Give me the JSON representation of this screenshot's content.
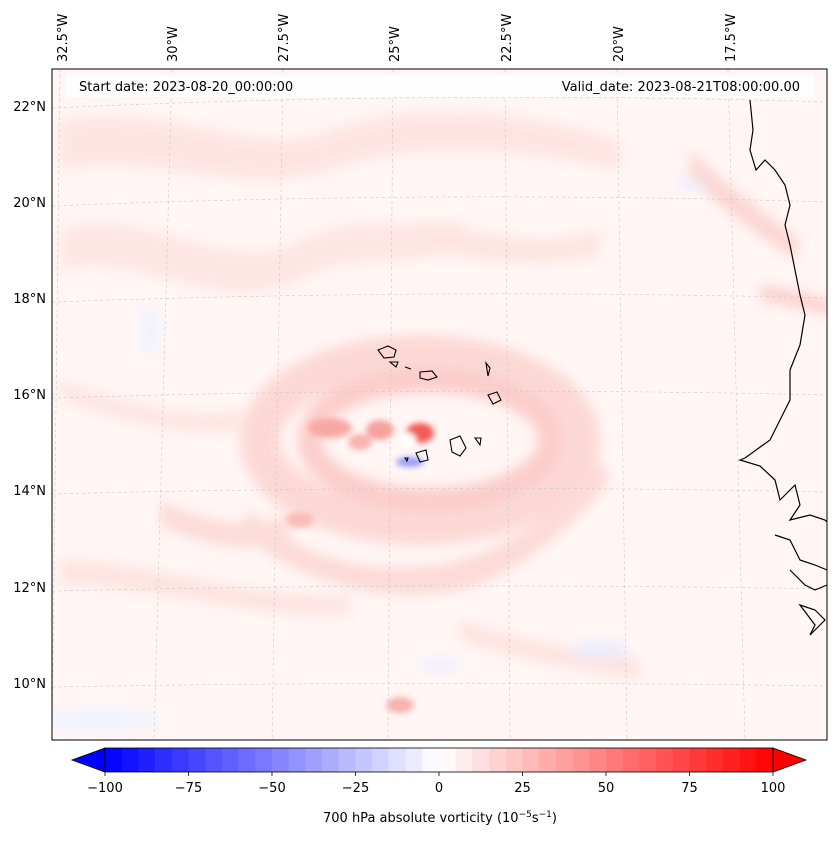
{
  "map": {
    "start_label": "Start date: 2023-08-20_00:00:00",
    "valid_label": "Valid_date: 2023-08-21T08:00:00.00",
    "lon_labels": [
      "32.5°W",
      "30°W",
      "27.5°W",
      "25°W",
      "22.5°W",
      "20°W",
      "17.5°W"
    ],
    "lat_labels": [
      "22°N",
      "20°N",
      "18°N",
      "16°N",
      "14°N",
      "12°N",
      "10°N"
    ],
    "gridlines": true,
    "features": [
      "Cape Verde islands",
      "West African coastline"
    ]
  },
  "colorbar": {
    "label": "700 hPa absolute vorticity (10",
    "label_exp1": "−5",
    "label_mid": "s",
    "label_exp2": "−1",
    "label_end": ")",
    "ticks": [
      "−100",
      "−75",
      "−50",
      "−25",
      "0",
      "25",
      "50",
      "75",
      "100"
    ],
    "min": -100,
    "max": 100,
    "colormap": "bwr",
    "extend": "both",
    "colors": {
      "neg": "#0000ff",
      "mid": "#ffffff",
      "pos": "#ff0000"
    }
  },
  "chart_data": {
    "type": "heatmap",
    "variable": "700 hPa absolute vorticity",
    "units": "10^-5 s^-1",
    "levels_range": [
      -100,
      100
    ],
    "lon_ticks_deg_w": [
      32.5,
      30,
      27.5,
      25,
      22.5,
      20,
      17.5
    ],
    "lat_ticks_deg_n": [
      22,
      20,
      18,
      16,
      14,
      12,
      10
    ],
    "max_positive_region": "near 24°W, 15°N (~60-70)",
    "min_negative_region": "near 24.5°W, 14.7°N (~-25)"
  }
}
